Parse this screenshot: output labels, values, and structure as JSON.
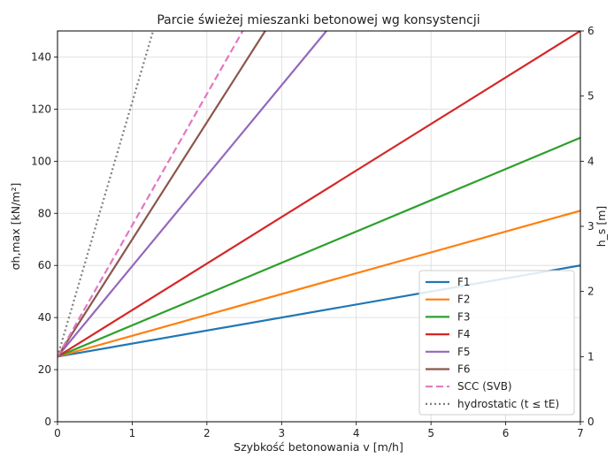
{
  "chart_data": {
    "type": "line",
    "title": "Parcie świeżej mieszanki betonowej wg konsystencji",
    "xlabel": "Szybkość betonowania v [m/h]",
    "ylabel": "σh,max [kN/m²]",
    "y2label": "h_s [m]",
    "xlim": [
      0,
      7
    ],
    "ylim": [
      0,
      150
    ],
    "y2lim": [
      0,
      6
    ],
    "xticks": [
      "0",
      "1",
      "2",
      "3",
      "4",
      "5",
      "6",
      "7"
    ],
    "yticks": [
      "0",
      "20",
      "40",
      "60",
      "80",
      "100",
      "120",
      "140"
    ],
    "y2ticks": [
      "0",
      "1",
      "2",
      "3",
      "4",
      "5",
      "6"
    ],
    "grid": true,
    "legend_position": "lower-right",
    "series": [
      {
        "name": "F1",
        "color": "#1f77b4",
        "dash": "solid",
        "x": [
          0,
          7
        ],
        "y": [
          25,
          60
        ]
      },
      {
        "name": "F2",
        "color": "#ff7f0e",
        "dash": "solid",
        "x": [
          0,
          7
        ],
        "y": [
          25,
          81
        ]
      },
      {
        "name": "F3",
        "color": "#2ca02c",
        "dash": "solid",
        "x": [
          0,
          7
        ],
        "y": [
          25,
          109
        ]
      },
      {
        "name": "F4",
        "color": "#d62728",
        "dash": "solid",
        "x": [
          0,
          7
        ],
        "y": [
          25,
          150
        ]
      },
      {
        "name": "F5",
        "color": "#9467bd",
        "dash": "solid",
        "x": [
          0,
          3.6
        ],
        "y": [
          25,
          150
        ]
      },
      {
        "name": "F6",
        "color": "#8c564b",
        "dash": "solid",
        "x": [
          0,
          2.78
        ],
        "y": [
          25,
          150
        ]
      },
      {
        "name": "SCC (SVB)",
        "color": "#e377c2",
        "dash": "dashed",
        "x": [
          0,
          2.48
        ],
        "y": [
          25,
          150
        ]
      },
      {
        "name": "hydrostatic (t ≤ tE)",
        "color": "#7f7f7f",
        "dash": "dotted",
        "x": [
          0,
          1.28
        ],
        "y": [
          25,
          150
        ]
      }
    ]
  }
}
